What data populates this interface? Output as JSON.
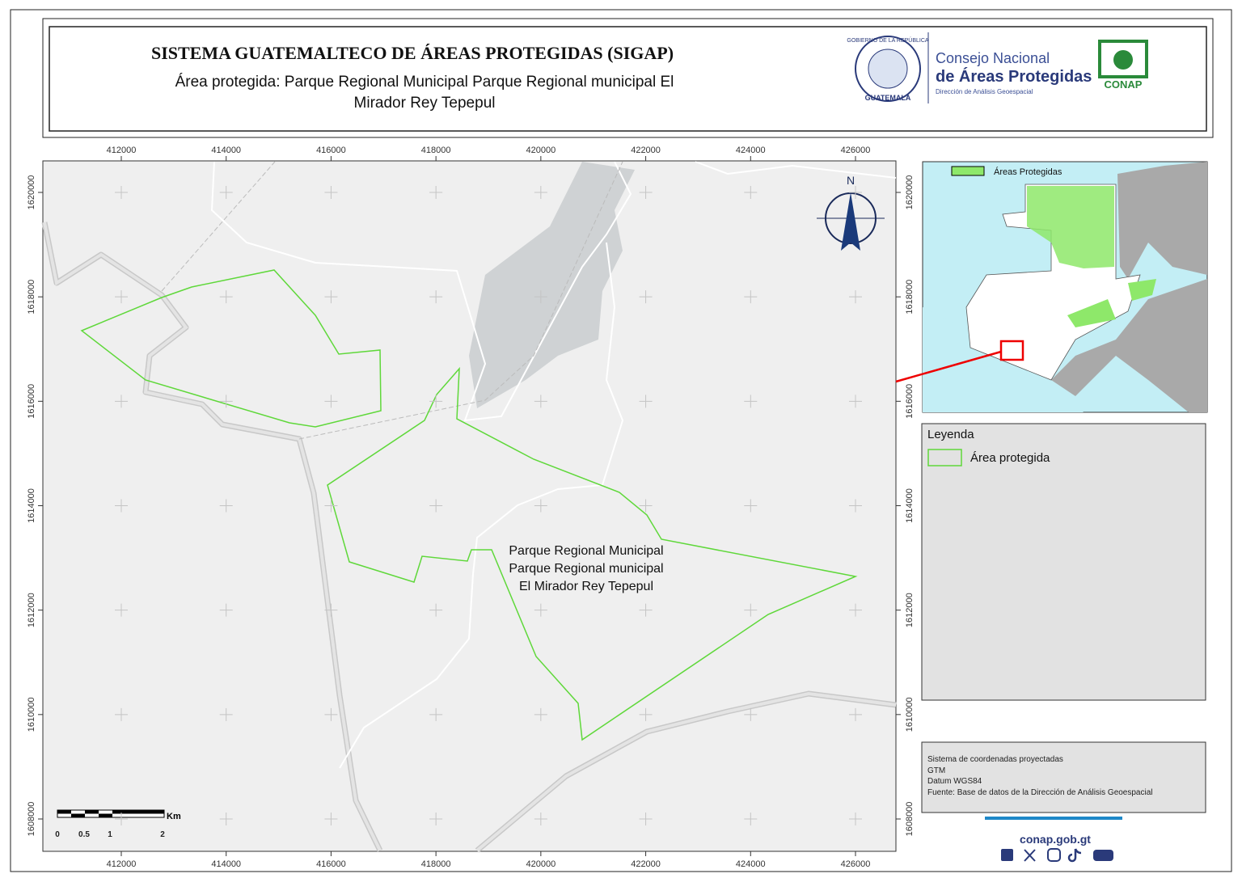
{
  "header": {
    "title": "SISTEMA GUATEMALTECO DE ÁREAS PROTEGIDAS  (SIGAP)",
    "subtitle_lines": [
      "Área protegida: Parque Regional Municipal Parque Regional municipal  El",
      "Mirador Rey Tepepul"
    ]
  },
  "logos": {
    "seal_top": "GOBIERNO DE LA REPÚBLICA",
    "seal_bottom": "GUATEMALA",
    "council_line1": "Consejo Nacional",
    "council_line2": "de Áreas Protegidas",
    "council_line3": "Dirección de Análisis Geoespacial",
    "conap": "CONAP"
  },
  "map": {
    "xticks": [
      412000,
      414000,
      416000,
      418000,
      420000,
      422000,
      424000,
      426000
    ],
    "yticks": [
      1608000,
      1610000,
      1612000,
      1614000,
      1616000,
      1618000,
      1620000
    ],
    "north": "N",
    "area_label": [
      "Parque Regional Municipal",
      "Parque Regional municipal",
      "El Mirador Rey Tepepul"
    ],
    "scale_unit": "Km",
    "scale_labels": [
      "0",
      "0.5",
      "1",
      "2"
    ]
  },
  "inset": {
    "legend": "Áreas Protegidas"
  },
  "legend": {
    "title": "Leyenda",
    "item": "Área protegida"
  },
  "info": [
    "Sistema de coordenadas proyectadas",
    "GTM",
    "Datum WGS84",
    "Fuente: Base de datos de la Dirección de Análisis Geoespacial"
  ],
  "footer": {
    "url": "conap.gob.gt"
  }
}
